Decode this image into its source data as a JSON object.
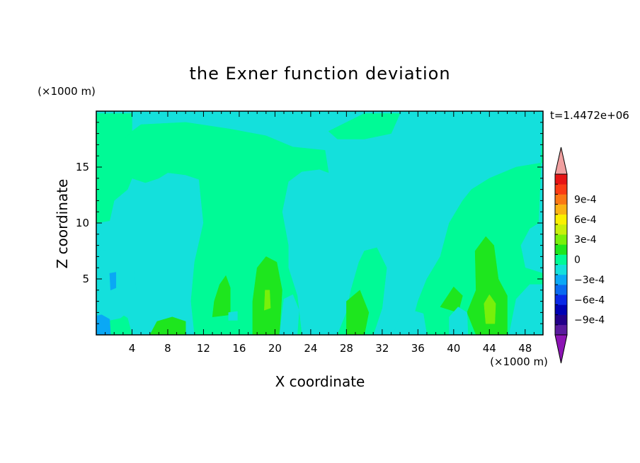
{
  "chart_data": {
    "type": "heatmap",
    "subtype": "filled-contour",
    "title": "the Exner function deviation",
    "xlabel": "X coordinate",
    "ylabel": "Z coordinate",
    "x_unit": "(×1000 m)",
    "y_unit": "(×1000 m)",
    "time_label": "t=1.4472e+06",
    "xlim": [
      0,
      50
    ],
    "ylim": [
      0,
      20
    ],
    "x_ticks": [
      4,
      8,
      12,
      16,
      20,
      24,
      28,
      32,
      36,
      40,
      44,
      48
    ],
    "y_ticks": [
      5,
      10,
      15
    ],
    "colorbar": {
      "levels": [
        -0.00105,
        -0.0009,
        -0.00075,
        -0.0006,
        -0.00045,
        -0.0003,
        -0.00015,
        0,
        0.00015,
        0.0003,
        0.00045,
        0.0006,
        0.00075,
        0.0009,
        0.00105
      ],
      "labels": [
        "9e-4",
        "6e-4",
        "3e-4",
        "0",
        "−3e-4",
        "−6e-4",
        "−9e-4"
      ],
      "label_values": [
        0.0009,
        0.0006,
        0.0003,
        0,
        -0.0003,
        -0.0006,
        -0.0009
      ],
      "colors": [
        "#5a1a9e",
        "#23008a",
        "#0000b4",
        "#0a28e6",
        "#0a6af0",
        "#0aa8f5",
        "#14e0dc",
        "#00fa96",
        "#1ee61e",
        "#78f00a",
        "#c8f00a",
        "#faf000",
        "#fab414",
        "#fa7814",
        "#fa3c14",
        "#e61414"
      ],
      "under_color": "#8c14b4",
      "over_color": "#f0a0a0"
    },
    "regions": [
      {
        "level": 0,
        "polys": [
          [
            [
              0,
              19.8
            ],
            [
              4,
              19.8
            ],
            [
              4,
              18.2
            ],
            [
              2.5,
              17
            ],
            [
              0,
              16.6
            ]
          ],
          [
            [
              30,
              19.8
            ],
            [
              34,
              19.8
            ],
            [
              33,
              18
            ],
            [
              30,
              17.5
            ],
            [
              27,
              17.5
            ],
            [
              26,
              18.2
            ]
          ],
          [
            [
              50,
              19.8
            ],
            [
              50,
              15.4
            ],
            [
              47,
              15
            ],
            [
              44,
              14
            ],
            [
              42,
              13
            ],
            [
              41,
              12
            ],
            [
              39.5,
              10
            ],
            [
              38.5,
              7
            ],
            [
              37,
              5
            ],
            [
              36,
              3
            ],
            [
              35,
              0
            ],
            [
              50,
              0
            ],
            [
              50,
              5.5
            ],
            [
              48,
              6
            ],
            [
              47.5,
              8
            ],
            [
              48.5,
              9.5
            ],
            [
              49.5,
              10
            ]
          ],
          [
            [
              0,
              16.6
            ],
            [
              0,
              10
            ],
            [
              1.5,
              10.2
            ],
            [
              2,
              12
            ],
            [
              3.5,
              13
            ],
            [
              4,
              14
            ],
            [
              5.5,
              13.6
            ],
            [
              7,
              14
            ],
            [
              8,
              14.5
            ],
            [
              10,
              14.3
            ],
            [
              11.5,
              13.9
            ],
            [
              12,
              10
            ],
            [
              11,
              6.5
            ],
            [
              10.6,
              3
            ],
            [
              11,
              0
            ],
            [
              23,
              0
            ],
            [
              22.5,
              3.5
            ],
            [
              21.5,
              6
            ],
            [
              21.5,
              8
            ],
            [
              20.8,
              11
            ],
            [
              21.5,
              13.7
            ],
            [
              23,
              14.6
            ],
            [
              25,
              14.8
            ],
            [
              26,
              14.5
            ],
            [
              25.6,
              16.5
            ],
            [
              22,
              16.8
            ],
            [
              19,
              17.8
            ],
            [
              15,
              18.4
            ],
            [
              10,
              19
            ],
            [
              5,
              18.8
            ],
            [
              4,
              18.2
            ],
            [
              2.5,
              17
            ]
          ],
          [
            [
              27,
              0
            ],
            [
              31,
              0
            ],
            [
              32,
              2.4
            ],
            [
              32.5,
              6
            ],
            [
              31.4,
              7.8
            ],
            [
              30,
              7.5
            ],
            [
              29.4,
              6.5
            ],
            [
              28.5,
              4
            ],
            [
              28,
              2
            ]
          ],
          [
            [
              0,
              0
            ],
            [
              4,
              0
            ],
            [
              3.5,
              1.5
            ],
            [
              2.5,
              2
            ],
            [
              1,
              1.5
            ],
            [
              0,
              1.5
            ]
          ]
        ]
      },
      {
        "level": 1,
        "polys": [
          [
            [
              6,
              0
            ],
            [
              10,
              0
            ],
            [
              10,
              1.2
            ],
            [
              8.5,
              1.6
            ],
            [
              6.8,
              1.2
            ]
          ],
          [
            [
              13,
              1.6
            ],
            [
              15,
              1.8
            ],
            [
              15,
              4.2
            ],
            [
              14.5,
              5.3
            ],
            [
              13.8,
              4.5
            ],
            [
              13.2,
              3
            ]
          ],
          [
            [
              17.5,
              0
            ],
            [
              20.5,
              0
            ],
            [
              20.8,
              4
            ],
            [
              20.2,
              6.5
            ],
            [
              19,
              7
            ],
            [
              18,
              6
            ],
            [
              17.5,
              3
            ]
          ],
          [
            [
              28,
              0
            ],
            [
              30,
              0
            ],
            [
              30.5,
              2
            ],
            [
              29.5,
              4
            ],
            [
              28,
              3
            ]
          ],
          [
            [
              38.5,
              2.5
            ],
            [
              40.5,
              2
            ],
            [
              41,
              3.5
            ],
            [
              40,
              4.3
            ]
          ],
          [
            [
              42.5,
              0
            ],
            [
              46,
              0
            ],
            [
              46,
              3.5
            ],
            [
              45,
              5
            ],
            [
              44.5,
              8
            ],
            [
              43.6,
              8.8
            ],
            [
              42.4,
              7.5
            ],
            [
              42.5,
              4
            ],
            [
              41.5,
              2
            ]
          ]
        ]
      },
      {
        "level": 2,
        "polys": [
          [
            [
              43.6,
              1
            ],
            [
              44.6,
              1
            ],
            [
              44.7,
              2.8
            ],
            [
              44,
              3.6
            ],
            [
              43.4,
              2.8
            ]
          ],
          [
            [
              18.8,
              2.2
            ],
            [
              19.5,
              2.4
            ],
            [
              19.4,
              4
            ],
            [
              18.9,
              4
            ]
          ]
        ]
      },
      {
        "level": -1,
        "polys": [
          [
            [
              0,
              7.5
            ],
            [
              1.5,
              7.6
            ],
            [
              3,
              7
            ],
            [
              4.2,
              5.8
            ],
            [
              4.5,
              4
            ],
            [
              3.8,
              2.2
            ],
            [
              2.7,
              1.5
            ],
            [
              1.5,
              1.3
            ],
            [
              0,
              1.4
            ]
          ],
          [
            [
              20.5,
              0
            ],
            [
              22.5,
              0
            ],
            [
              22.7,
              2.2
            ],
            [
              22,
              3.6
            ],
            [
              21,
              3.2
            ]
          ],
          [
            [
              33.2,
              0
            ],
            [
              37,
              0
            ],
            [
              36.6,
              1.9
            ],
            [
              35.3,
              2.2
            ],
            [
              34,
              1.9
            ]
          ],
          [
            [
              39.5,
              0
            ],
            [
              41.6,
              0
            ],
            [
              41.5,
              2
            ],
            [
              40.5,
              2.5
            ],
            [
              39.5,
              1.6
            ]
          ],
          [
            [
              46.2,
              0
            ],
            [
              50,
              0
            ],
            [
              50,
              4.5
            ],
            [
              48.5,
              4.5
            ],
            [
              47,
              3.2
            ]
          ],
          [
            [
              14.8,
              1.3
            ],
            [
              15.8,
              1.3
            ],
            [
              15.8,
              2.1
            ],
            [
              14.8,
              2
            ]
          ]
        ]
      },
      {
        "level": -2,
        "polys": [
          [
            [
              0,
              0
            ],
            [
              1.6,
              0
            ],
            [
              1.5,
              1.4
            ],
            [
              0.6,
              1.8
            ],
            [
              0,
              1.7
            ]
          ],
          [
            [
              1.5,
              5.5
            ],
            [
              2.2,
              5.6
            ],
            [
              2.2,
              4.2
            ],
            [
              1.6,
              4
            ]
          ]
        ]
      }
    ]
  }
}
